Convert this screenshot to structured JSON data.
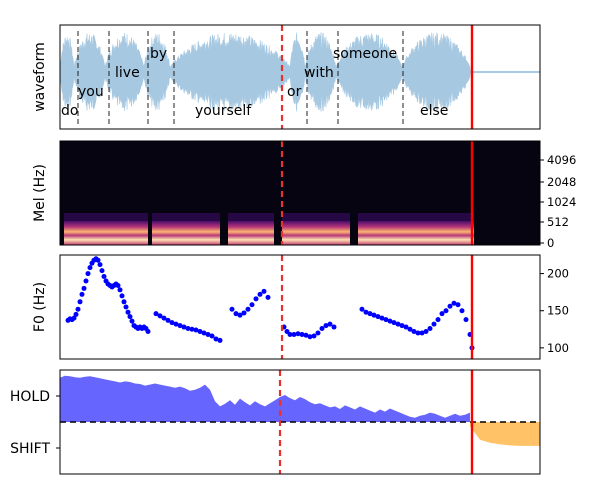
{
  "chart_data": [
    {
      "type": "waveform",
      "ylabel": "waveform",
      "t_range": [
        0,
        4.8
      ],
      "color": "#a6c8e1",
      "word_spans": [
        [
          0.0,
          0.14
        ],
        [
          0.14,
          0.45
        ],
        [
          0.45,
          0.84
        ],
        [
          0.84,
          1.1
        ],
        [
          1.1,
          2.3
        ],
        [
          2.3,
          2.45
        ],
        [
          2.45,
          2.76
        ],
        [
          2.76,
          3.42
        ],
        [
          3.42,
          4.1
        ]
      ],
      "words": [
        {
          "text": "do",
          "t": 0.0,
          "row": "bottom"
        },
        {
          "text": "you",
          "t": 0.18,
          "row": "lower"
        },
        {
          "text": "live",
          "t": 0.55,
          "row": "middle"
        },
        {
          "text": "by",
          "t": 0.9,
          "row": "top"
        },
        {
          "text": "yourself",
          "t": 1.35,
          "row": "bottom"
        },
        {
          "text": "or",
          "t": 2.27,
          "row": "lower"
        },
        {
          "text": "with",
          "t": 2.44,
          "row": "middle"
        },
        {
          "text": "someone",
          "t": 2.73,
          "row": "top"
        },
        {
          "text": "else",
          "t": 3.6,
          "row": "bottom"
        }
      ],
      "word_boundaries": [
        0.18,
        0.49,
        0.88,
        1.14,
        2.47,
        2.78,
        3.43
      ],
      "dashed_marker": 2.22,
      "solid_marker": 4.12
    },
    {
      "type": "heatmap",
      "ylabel": "Mel (Hz)",
      "y_ticks": [
        "0",
        "512",
        "1024",
        "2048",
        "4096"
      ],
      "voiced_segments": [
        [
          0.04,
          0.88
        ],
        [
          0.92,
          1.6
        ],
        [
          1.68,
          2.14
        ],
        [
          2.22,
          2.9
        ],
        [
          2.98,
          4.14
        ]
      ],
      "dashed_marker": 2.22,
      "solid_marker": 4.12
    },
    {
      "type": "scatter",
      "ylabel": "F0 (Hz)",
      "y_ticks": [
        100,
        150,
        200
      ],
      "ylim": [
        85,
        225
      ],
      "color": "#0000ff",
      "series": [
        {
          "x": [
            0.08,
            0.1,
            0.12,
            0.14,
            0.16,
            0.18,
            0.2,
            0.22,
            0.24,
            0.26,
            0.28,
            0.3,
            0.32,
            0.34,
            0.36,
            0.38,
            0.4,
            0.42,
            0.44,
            0.46,
            0.48,
            0.5,
            0.52,
            0.54,
            0.56,
            0.58,
            0.6,
            0.62,
            0.64,
            0.66,
            0.68,
            0.7,
            0.72,
            0.74,
            0.76,
            0.78,
            0.8,
            0.82,
            0.84,
            0.86,
            0.88
          ],
          "y": [
            137,
            139,
            138,
            140,
            145,
            152,
            162,
            172,
            180,
            190,
            200,
            208,
            214,
            218,
            220,
            218,
            212,
            204,
            196,
            190,
            186,
            184,
            182,
            184,
            186,
            184,
            178,
            170,
            162,
            155,
            148,
            142,
            136,
            130,
            128,
            126,
            128,
            126,
            128,
            126,
            122
          ]
        },
        {
          "x": [
            0.96,
            1.0,
            1.04,
            1.08,
            1.12,
            1.16,
            1.2,
            1.24,
            1.28,
            1.32,
            1.36,
            1.4,
            1.44,
            1.48,
            1.52,
            1.56,
            1.6
          ],
          "y": [
            146,
            143,
            140,
            137,
            134,
            132,
            130,
            128,
            126,
            125,
            124,
            122,
            120,
            118,
            116,
            112,
            110
          ]
        },
        {
          "x": [
            1.72,
            1.76,
            1.8,
            1.84,
            1.88,
            1.92,
            1.96,
            2.0,
            2.04,
            2.08
          ],
          "y": [
            152,
            146,
            144,
            147,
            152,
            158,
            166,
            172,
            176,
            168
          ]
        },
        {
          "x": [
            2.24,
            2.27,
            2.3,
            2.34,
            2.38,
            2.42,
            2.46,
            2.5,
            2.54,
            2.58,
            2.62,
            2.66,
            2.7,
            2.74
          ],
          "y": [
            128,
            122,
            118,
            118,
            119,
            118,
            117,
            115,
            116,
            120,
            126,
            130,
            132,
            128
          ]
        },
        {
          "x": [
            3.02,
            3.06,
            3.1,
            3.14,
            3.18,
            3.22,
            3.26,
            3.3,
            3.34,
            3.38,
            3.42,
            3.46,
            3.5,
            3.54,
            3.58,
            3.62,
            3.66,
            3.7,
            3.74,
            3.78
          ],
          "y": [
            152,
            148,
            146,
            144,
            142,
            140,
            138,
            136,
            134,
            132,
            130,
            128,
            125,
            122,
            120,
            120,
            122,
            126,
            132,
            138
          ]
        },
        {
          "x": [
            3.82,
            3.86,
            3.9,
            3.94,
            3.98,
            4.02,
            4.06,
            4.1,
            4.12
          ],
          "y": [
            146,
            150,
            156,
            160,
            158,
            150,
            138,
            118,
            100
          ]
        }
      ],
      "dashed_marker": 2.22,
      "solid_marker": 4.12
    },
    {
      "type": "area",
      "categories": [
        "HOLD",
        "SHIFT"
      ],
      "ylim": [
        -1,
        1
      ],
      "hold_color": "#6666ff",
      "shift_color": "#ffc266",
      "hold_series": {
        "x": [
          0.0,
          0.05,
          0.1,
          0.15,
          0.2,
          0.25,
          0.3,
          0.35,
          0.4,
          0.45,
          0.5,
          0.55,
          0.6,
          0.65,
          0.7,
          0.75,
          0.8,
          0.85,
          0.9,
          0.95,
          1.0,
          1.05,
          1.1,
          1.15,
          1.2,
          1.25,
          1.3,
          1.35,
          1.4,
          1.45,
          1.5,
          1.55,
          1.6,
          1.65,
          1.7,
          1.75,
          1.8,
          1.85,
          1.9,
          1.95,
          2.0,
          2.05,
          2.1,
          2.15,
          2.2,
          2.25,
          2.3,
          2.35,
          2.4,
          2.45,
          2.5,
          2.55,
          2.6,
          2.65,
          2.7,
          2.75,
          2.8,
          2.85,
          2.9,
          2.95,
          3.0,
          3.05,
          3.1,
          3.15,
          3.2,
          3.25,
          3.3,
          3.35,
          3.4,
          3.45,
          3.5,
          3.55,
          3.6,
          3.65,
          3.7,
          3.75,
          3.8,
          3.85,
          3.9,
          3.95,
          4.0,
          4.05,
          4.1
        ],
        "y": [
          0.85,
          0.89,
          0.88,
          0.86,
          0.85,
          0.87,
          0.88,
          0.86,
          0.84,
          0.82,
          0.8,
          0.78,
          0.76,
          0.78,
          0.77,
          0.74,
          0.73,
          0.7,
          0.72,
          0.74,
          0.72,
          0.7,
          0.68,
          0.66,
          0.68,
          0.65,
          0.6,
          0.62,
          0.66,
          0.72,
          0.62,
          0.4,
          0.3,
          0.35,
          0.42,
          0.33,
          0.45,
          0.38,
          0.32,
          0.4,
          0.34,
          0.3,
          0.36,
          0.42,
          0.48,
          0.52,
          0.46,
          0.42,
          0.48,
          0.44,
          0.38,
          0.34,
          0.36,
          0.32,
          0.28,
          0.3,
          0.25,
          0.32,
          0.28,
          0.24,
          0.3,
          0.26,
          0.22,
          0.18,
          0.24,
          0.2,
          0.26,
          0.22,
          0.18,
          0.14,
          0.1,
          0.08,
          0.12,
          0.14,
          0.18,
          0.16,
          0.12,
          0.08,
          0.12,
          0.16,
          0.12,
          0.14,
          0.18
        ]
      },
      "shift_series": {
        "x": [
          4.1,
          4.2,
          4.3,
          4.4,
          4.5,
          4.6,
          4.7,
          4.8
        ],
        "y": [
          -0.08,
          -0.34,
          -0.4,
          -0.43,
          -0.45,
          -0.46,
          -0.46,
          -0.46
        ]
      },
      "threshold": 0,
      "dashed_marker": 2.2,
      "solid_marker": 4.12
    }
  ]
}
